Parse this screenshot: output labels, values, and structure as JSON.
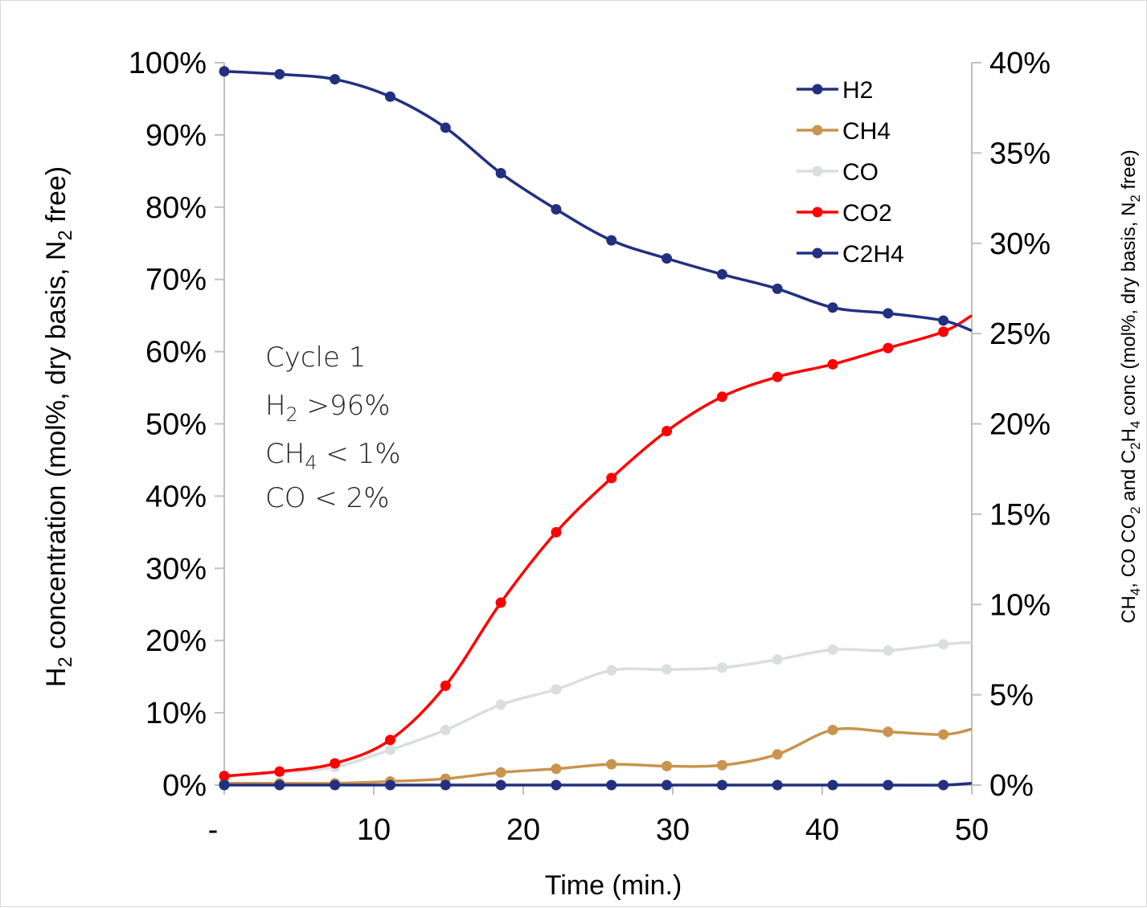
{
  "chart_data": {
    "type": "line",
    "title": "",
    "xlabel": "Time (min.)",
    "ylabel": {
      "prefix": "H",
      "sub": "2",
      "rest": " concentration (mol%, dry basis, N",
      "sub2": "2",
      "end": " free)"
    },
    "y2label": {
      "p1": "CH",
      "s1": "4",
      "p2": ",  CO CO",
      "s2": "2",
      "p3": " and C",
      "s3": "2",
      "p4": "H",
      "s4": "4",
      "p5": " conc (mol%, dry basis, N",
      "s5": "2",
      "p6": " free)"
    },
    "xlim": [
      0,
      50
    ],
    "ylim": [
      0,
      100
    ],
    "y2lim": [
      0,
      40
    ],
    "x_ticks": [
      {
        "value": 0,
        "label": "-"
      },
      {
        "value": 10,
        "label": "10"
      },
      {
        "value": 20,
        "label": "20"
      },
      {
        "value": 30,
        "label": "30"
      },
      {
        "value": 40,
        "label": "40"
      },
      {
        "value": 50,
        "label": "50"
      }
    ],
    "y_ticks": [
      {
        "value": 0,
        "label": "0%"
      },
      {
        "value": 10,
        "label": "10%"
      },
      {
        "value": 20,
        "label": "20%"
      },
      {
        "value": 30,
        "label": "30%"
      },
      {
        "value": 40,
        "label": "40%"
      },
      {
        "value": 50,
        "label": "50%"
      },
      {
        "value": 60,
        "label": "60%"
      },
      {
        "value": 70,
        "label": "70%"
      },
      {
        "value": 80,
        "label": "80%"
      },
      {
        "value": 90,
        "label": "90%"
      },
      {
        "value": 100,
        "label": "100%"
      }
    ],
    "y2_ticks": [
      {
        "value": 0,
        "label": "0%"
      },
      {
        "value": 5,
        "label": "5%"
      },
      {
        "value": 10,
        "label": "10%"
      },
      {
        "value": 15,
        "label": "15%"
      },
      {
        "value": 20,
        "label": "20%"
      },
      {
        "value": 25,
        "label": "25%"
      },
      {
        "value": 30,
        "label": "30%"
      },
      {
        "value": 35,
        "label": "35%"
      },
      {
        "value": 40,
        "label": "40%"
      }
    ],
    "grid": false,
    "legend_position": "top-right",
    "series": [
      {
        "name": "H2",
        "axis": "left",
        "color": "#223080",
        "x": [
          0,
          3.7,
          7.4,
          11.1,
          14.8,
          18.5,
          22.2,
          25.9,
          29.6,
          33.3,
          37,
          40.7,
          44.4,
          48.1,
          50
        ],
        "y": [
          98.8,
          98.4,
          97.7,
          95.3,
          91,
          84.7,
          79.7,
          75.4,
          72.9,
          70.7,
          68.7,
          66.1,
          65.3,
          64.3,
          62.9
        ],
        "markers": [
          true,
          true,
          true,
          true,
          true,
          true,
          true,
          true,
          true,
          true,
          true,
          true,
          true,
          true,
          false
        ]
      },
      {
        "name": "CH4",
        "axis": "right",
        "color": "#c8944e",
        "x": [
          0,
          3.7,
          7.4,
          11.1,
          14.8,
          18.5,
          22.2,
          25.9,
          29.6,
          33.3,
          37,
          40.7,
          44.4,
          48.1,
          50
        ],
        "y": [
          0.1,
          0.1,
          0.1,
          0.2,
          0.35,
          0.7,
          0.9,
          1.15,
          1.05,
          1.1,
          1.7,
          3.05,
          2.95,
          2.8,
          3.1
        ],
        "markers": [
          true,
          true,
          true,
          true,
          true,
          true,
          true,
          true,
          true,
          true,
          true,
          true,
          true,
          true,
          false
        ]
      },
      {
        "name": "CO",
        "axis": "right",
        "color": "#d9dede",
        "x": [
          0,
          3.7,
          7.4,
          11.1,
          14.8,
          18.5,
          22.2,
          25.9,
          29.6,
          33.3,
          37,
          40.7,
          44.4,
          48.1,
          50
        ],
        "y": [
          0.5,
          0.7,
          1.0,
          1.95,
          3.05,
          4.45,
          5.3,
          6.35,
          6.4,
          6.5,
          6.95,
          7.5,
          7.45,
          7.8,
          7.9
        ],
        "markers": [
          true,
          true,
          true,
          true,
          true,
          true,
          true,
          true,
          true,
          true,
          true,
          true,
          true,
          true,
          false
        ]
      },
      {
        "name": "CO2",
        "axis": "right",
        "color": "#ff0000",
        "x": [
          0,
          3.7,
          7.4,
          11.1,
          14.8,
          18.5,
          22.2,
          25.9,
          29.6,
          33.3,
          37,
          40.7,
          44.4,
          48.1,
          50
        ],
        "y": [
          0.5,
          0.75,
          1.2,
          2.5,
          5.5,
          10.1,
          14.0,
          17.0,
          19.6,
          21.5,
          22.6,
          23.3,
          24.2,
          25.1,
          26.0
        ],
        "markers": [
          true,
          true,
          true,
          true,
          true,
          true,
          true,
          true,
          true,
          true,
          true,
          true,
          true,
          true,
          false
        ]
      },
      {
        "name": "C2H4",
        "axis": "right",
        "color": "#223080",
        "x": [
          0,
          3.7,
          7.4,
          11.1,
          14.8,
          18.5,
          22.2,
          25.9,
          29.6,
          33.3,
          37,
          40.7,
          44.4,
          48.1,
          50
        ],
        "y": [
          0,
          0,
          0,
          0,
          0,
          0,
          0,
          0,
          0,
          0,
          0,
          0,
          0,
          0,
          0.1
        ],
        "markers": [
          true,
          true,
          true,
          true,
          true,
          true,
          true,
          true,
          true,
          true,
          true,
          true,
          true,
          true,
          false
        ]
      }
    ],
    "annotation": {
      "line1": "Cycle 1",
      "line2_prefix": "H",
      "line2_sub": "2",
      "line2_rest": "  >96%",
      "line3_prefix": "CH",
      "line3_sub": "4",
      "line3_rest": " < 1%",
      "line4": "CO < 2%"
    }
  }
}
